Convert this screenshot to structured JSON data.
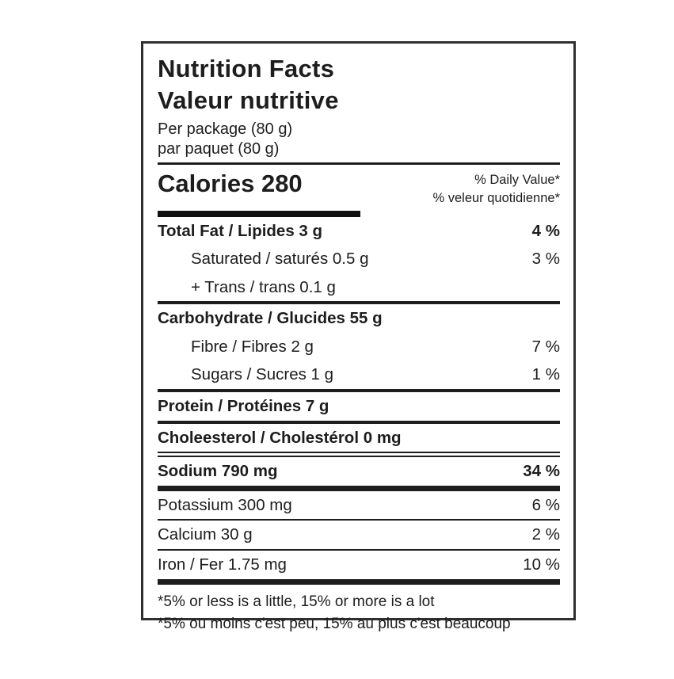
{
  "label": {
    "title_en": "Nutrition Facts",
    "title_fr": "Valeur nutritive",
    "serving_en": "Per package (80 g)",
    "serving_fr": "par paquet (80 g)",
    "calories": "Calories 280",
    "daily_value_en": "% Daily Value*",
    "daily_value_fr": "% veleur quotidienne*",
    "nutrients": [
      {
        "text": "Total Fat / Lipides 3 g",
        "percent": "4 %",
        "bold": true,
        "indent": 0,
        "rule_after": "none"
      },
      {
        "text": "Saturated / saturés 0.5 g",
        "percent": "3 %",
        "bold": false,
        "indent": 1,
        "rule_after": "none"
      },
      {
        "text": "+ Trans / trans 0.1 g",
        "percent": "",
        "bold": false,
        "indent": 1,
        "rule_after": "medium"
      },
      {
        "text": "Carbohydrate / Glucides 55 g",
        "percent": "",
        "bold": true,
        "indent": 0,
        "rule_after": "none"
      },
      {
        "text": "Fibre / Fibres 2 g",
        "percent": "7 %",
        "bold": false,
        "indent": 1,
        "rule_after": "none"
      },
      {
        "text": "Sugars / Sucres 1 g",
        "percent": "1 %",
        "bold": false,
        "indent": 1,
        "rule_after": "medium"
      },
      {
        "text": "Protein / Protéines 7 g",
        "percent": "",
        "bold": true,
        "indent": 0,
        "rule_after": "medium"
      },
      {
        "text": "Choleesterol / Cholestérol 0 mg",
        "percent": "",
        "bold": true,
        "indent": 0,
        "rule_after": "double"
      },
      {
        "text": "Sodium 790 mg",
        "percent": "34 %",
        "bold": true,
        "indent": 0,
        "rule_after": "thick"
      },
      {
        "text": "Potassium 300 mg",
        "percent": "6 %",
        "bold": false,
        "indent": 0,
        "rule_after": "thin"
      },
      {
        "text": "Calcium 30 g",
        "percent": "2 %",
        "bold": false,
        "indent": 0,
        "rule_after": "thin"
      },
      {
        "text": "Iron / Fer 1.75 mg",
        "percent": "10 %",
        "bold": false,
        "indent": 0,
        "rule_after": "thick"
      }
    ],
    "footnote_en": "*5% or less is a little, 15% or more is a lot",
    "footnote_fr": "*5% ou moins c'est peu, 15% au plus c'est beaucoup",
    "colors": {
      "text": "#1d1d1d",
      "border": "#2f2f2f",
      "background": "#ffffff"
    }
  }
}
